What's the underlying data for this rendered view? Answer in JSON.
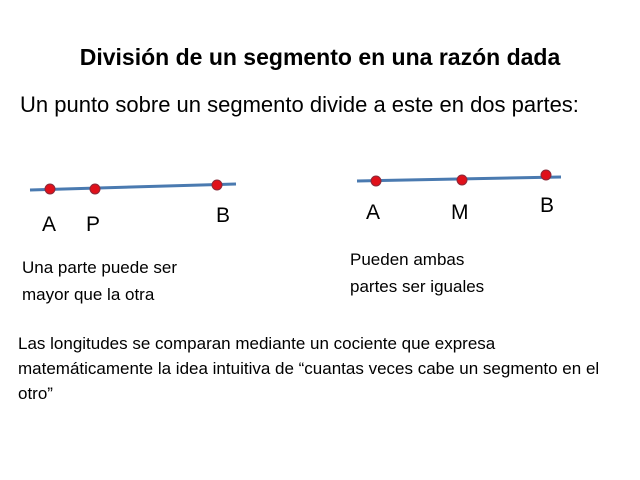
{
  "title": "División de un segmento en una razón dada",
  "intro": "Un punto sobre un segmento divide a este en dos partes:",
  "diagram_left": {
    "points": [
      "A",
      "P",
      "B"
    ],
    "caption_line1": "Una parte puede ser",
    "caption_line2": "mayor que la otra"
  },
  "diagram_right": {
    "points": [
      "A",
      "M",
      "B"
    ],
    "caption_line1": "Pueden ambas",
    "caption_line2": "partes ser iguales"
  },
  "bottom_text": "Las longitudes se comparan mediante un cociente que expresa matemáticamente la idea intuitiva de “cuantas veces cabe un segmento en el otro”",
  "colors": {
    "segment": "#4a7ab0",
    "point": "#e0101a",
    "point_outline": "#8a2a3a"
  }
}
